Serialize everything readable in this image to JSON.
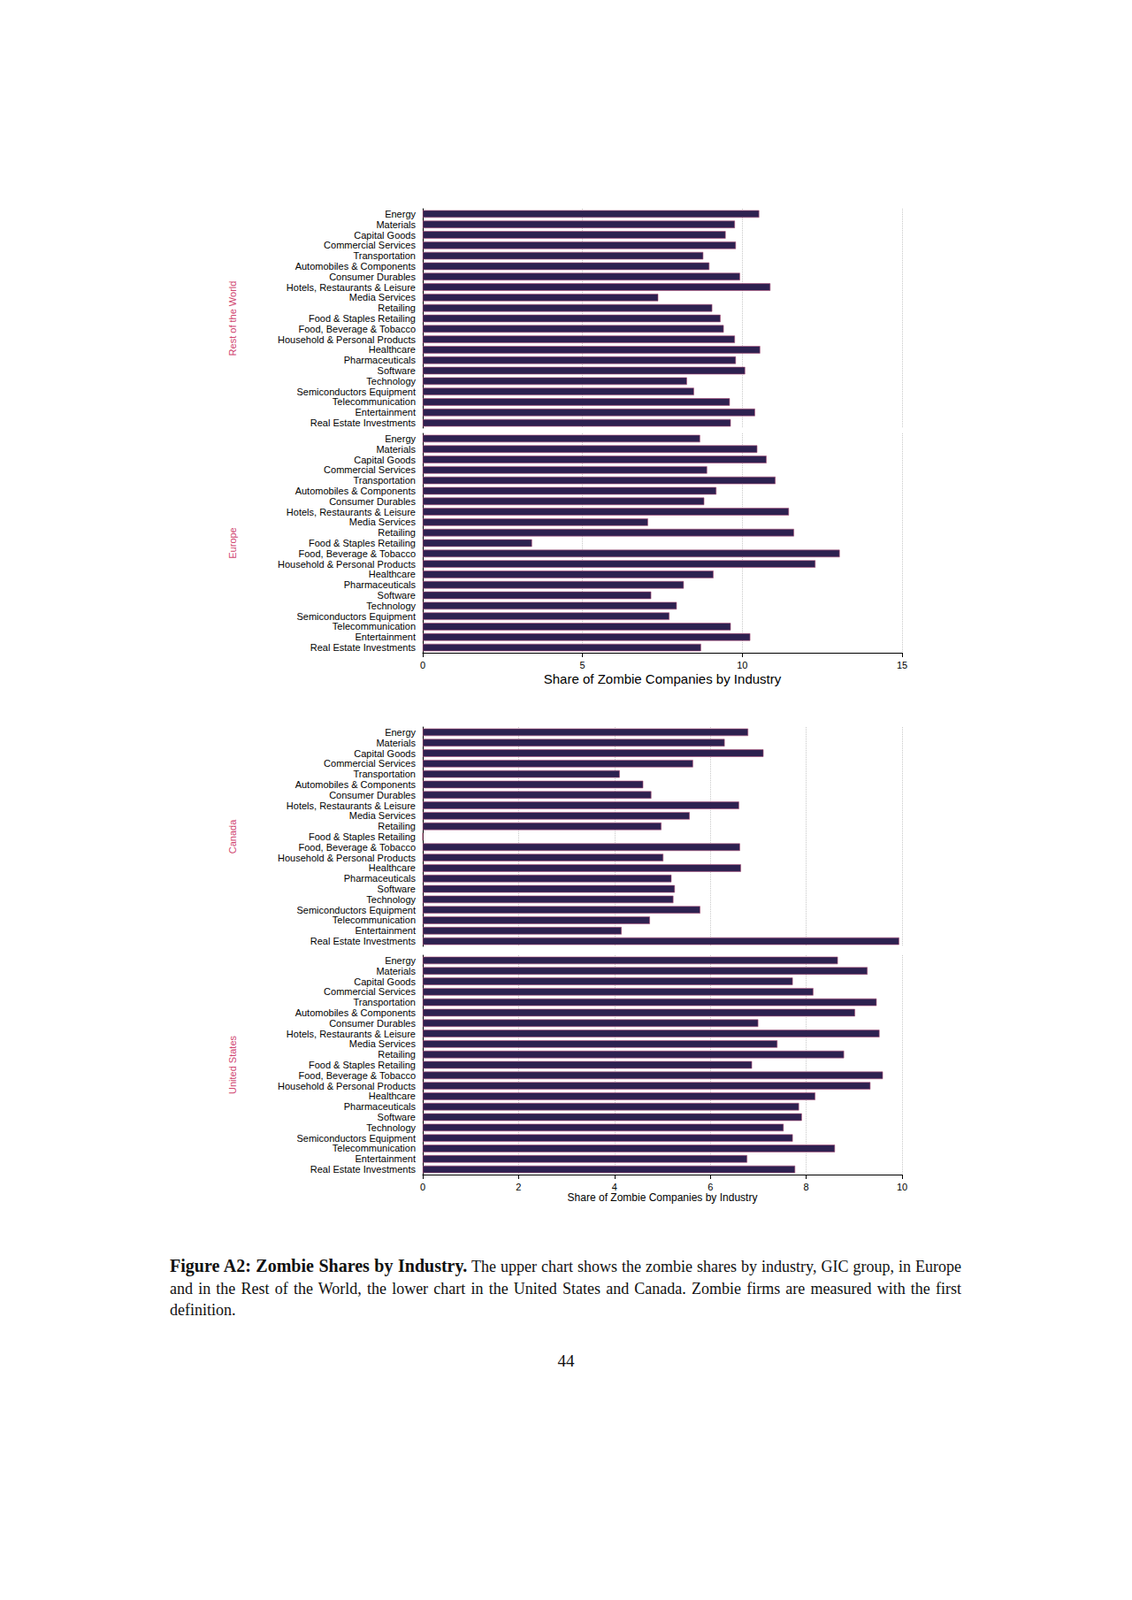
{
  "chart_data": [
    {
      "type": "bar",
      "orientation": "horizontal",
      "grid": true,
      "xlabel": "Share of Zombie Companies by Industry",
      "xlim": [
        0,
        15
      ],
      "xticks": [
        0,
        5,
        10,
        15
      ],
      "categories": [
        "Energy",
        "Materials",
        "Capital Goods",
        "Commercial Services",
        "Transportation",
        "Automobiles & Components",
        "Consumer Durables",
        "Hotels, Restaurants & Leisure",
        "Media Services",
        "Retailing",
        "Food & Staples Retailing",
        "Food, Beverage & Tobacco",
        "Household & Personal Products",
        "Healthcare",
        "Pharmaceuticals",
        "Software",
        "Technology",
        "Semiconductors Equipment",
        "Telecommunication",
        "Entertainment",
        "Real Estate Investments"
      ],
      "series": [
        {
          "name": "Rest of the World",
          "color": "#2d2150",
          "values": [
            10.53,
            9.77,
            9.48,
            9.8,
            8.78,
            8.97,
            9.93,
            10.88,
            7.37,
            9.06,
            9.32,
            9.42,
            9.77,
            10.56,
            9.8,
            10.09,
            8.27,
            8.49,
            9.61,
            10.4,
            9.64
          ]
        },
        {
          "name": "Europe",
          "color": "#2d2150",
          "values": [
            8.68,
            10.47,
            10.76,
            8.9,
            11.04,
            9.19,
            8.81,
            11.46,
            7.05,
            11.62,
            3.42,
            13.05,
            12.29,
            9.1,
            8.17,
            7.15,
            7.95,
            7.72,
            9.64,
            10.25,
            8.71
          ]
        }
      ]
    },
    {
      "type": "bar",
      "orientation": "horizontal",
      "grid": true,
      "xlabel": "Share of Zombie Companies by Industry",
      "xlim": [
        0,
        10
      ],
      "xticks": [
        0,
        2,
        4,
        6,
        8,
        10
      ],
      "categories": [
        "Energy",
        "Materials",
        "Capital Goods",
        "Commercial Services",
        "Transportation",
        "Automobiles & Components",
        "Consumer Durables",
        "Hotels, Restaurants & Leisure",
        "Media Services",
        "Retailing",
        "Food & Staples Retailing",
        "Food, Beverage & Tobacco",
        "Household & Personal Products",
        "Healthcare",
        "Pharmaceuticals",
        "Software",
        "Technology",
        "Semiconductors Equipment",
        "Telecommunication",
        "Entertainment",
        "Real Estate Investments"
      ],
      "series": [
        {
          "name": "Canada",
          "color": "#2d2150",
          "values": [
            6.79,
            6.3,
            7.11,
            5.64,
            4.11,
            4.6,
            4.77,
            6.6,
            5.57,
            4.98,
            0,
            6.62,
            5.02,
            6.64,
            5.19,
            5.26,
            5.23,
            5.79,
            4.74,
            4.15,
            9.94
          ]
        },
        {
          "name": "United States",
          "color": "#2d2150",
          "values": [
            8.66,
            9.28,
            7.72,
            8.15,
            9.47,
            9.02,
            7.0,
            9.53,
            7.4,
            8.79,
            6.87,
            9.6,
            9.34,
            8.19,
            7.85,
            7.91,
            7.53,
            7.72,
            8.6,
            6.77,
            7.77
          ]
        }
      ]
    }
  ],
  "caption": {
    "title": "Figure A2: Zombie Shares by Industry.",
    "text": "The upper chart shows the zombie shares by industry, GIC group, in Europe and in the Rest of the World, the lower chart in the United States and Canada. Zombie firms are measured with the first definition."
  },
  "page_number": "44"
}
